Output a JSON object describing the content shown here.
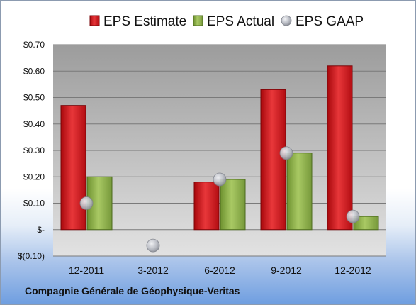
{
  "company": "Compagnie Générale de Géophysique-Veritas",
  "chart_data": {
    "type": "bar",
    "categories": [
      "12-2011",
      "3-2012",
      "6-2012",
      "9-2012",
      "12-2012"
    ],
    "series": [
      {
        "name": "EPS Estimate",
        "kind": "bar",
        "color": "#d0191f",
        "values": [
          0.47,
          null,
          0.18,
          0.53,
          0.62
        ]
      },
      {
        "name": "EPS Actual",
        "kind": "bar",
        "color": "#8db04a",
        "values": [
          0.2,
          null,
          0.19,
          0.29,
          0.05
        ]
      },
      {
        "name": "EPS GAAP",
        "kind": "marker",
        "color": "#b9bcc4",
        "values": [
          0.1,
          -0.06,
          0.19,
          0.29,
          0.05
        ]
      }
    ],
    "yticks": [
      {
        "value": 0.7,
        "label": "$0.70"
      },
      {
        "value": 0.6,
        "label": "$0.60"
      },
      {
        "value": 0.5,
        "label": "$0.50"
      },
      {
        "value": 0.4,
        "label": "$0.40"
      },
      {
        "value": 0.3,
        "label": "$0.30"
      },
      {
        "value": 0.2,
        "label": "$0.20"
      },
      {
        "value": 0.1,
        "label": "$0.10"
      },
      {
        "value": 0.0,
        "label": "$-"
      },
      {
        "value": -0.1,
        "label": "$(0.10)"
      }
    ],
    "ylim": [
      -0.1,
      0.7
    ],
    "grid": true,
    "legend_position": "top"
  }
}
